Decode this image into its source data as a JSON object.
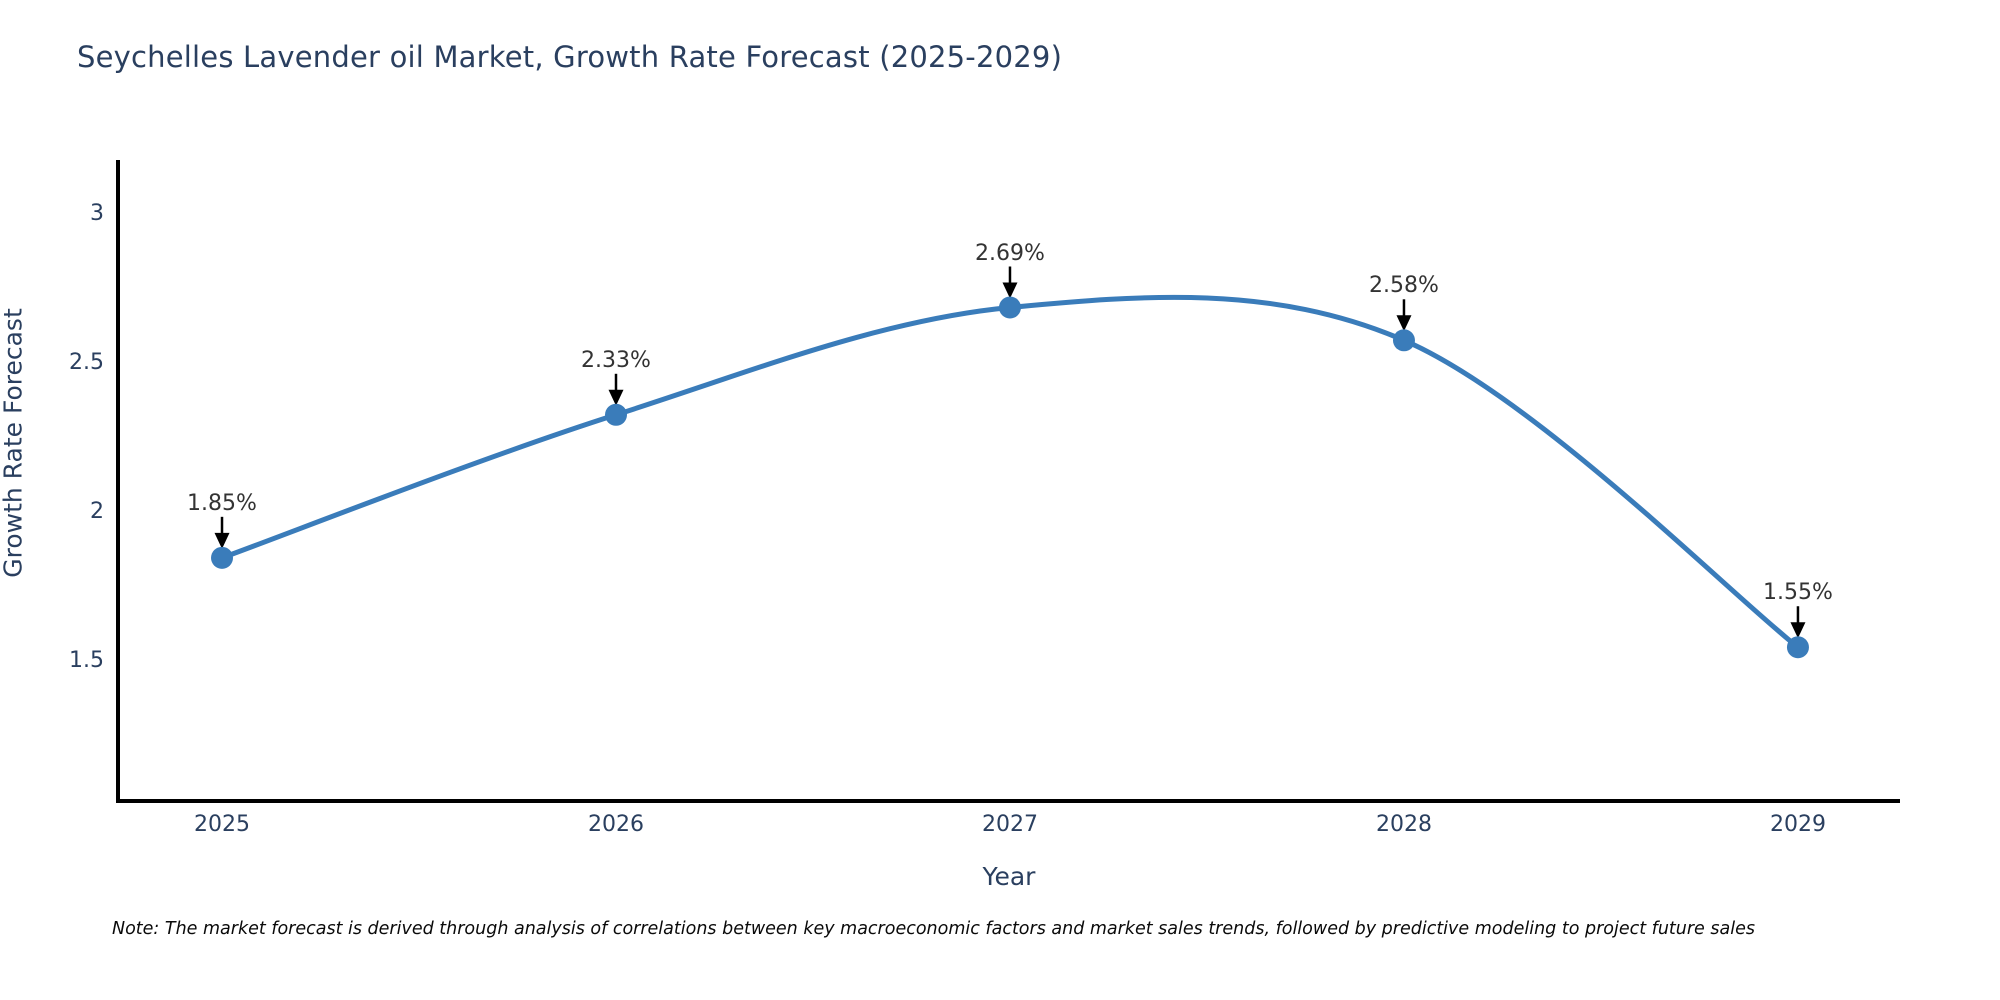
{
  "title": "Seychelles Lavender oil Market, Growth Rate Forecast (2025-2029)",
  "note": "Note: The market forecast is derived through analysis of correlations between key macroeconomic factors and market sales trends, followed by predictive modeling to project future sales",
  "colors": {
    "line": "#3a7cba",
    "marker": "#3a7cba",
    "arrow": "#000000",
    "axis_line": "#000000",
    "title_text": "#2a3f5f",
    "tick_text": "#2a3f5f",
    "annotation_text": "#333333",
    "background": "#ffffff"
  },
  "chart_data": {
    "type": "line",
    "title": "Seychelles Lavender oil Market, Growth Rate Forecast (2025-2029)",
    "xlabel": "Year",
    "ylabel": "Growth Rate Forecast",
    "x": [
      2025,
      2026,
      2027,
      2028,
      2029
    ],
    "values": [
      1.85,
      2.33,
      2.69,
      2.58,
      1.55
    ],
    "point_labels": [
      "1.85%",
      "2.33%",
      "2.69%",
      "2.58%",
      "1.55%"
    ],
    "x_tick_labels": [
      "2025",
      "2026",
      "2027",
      "2028",
      "2029"
    ],
    "y_ticks": [
      1.5,
      2,
      2.5,
      3
    ],
    "y_tick_labels": [
      "1.5",
      "2",
      "2.5",
      "3"
    ],
    "xlim": [
      2024.736,
      2029.259
    ],
    "ylim": [
      1.034,
      3.185
    ],
    "line_shape": "spline",
    "grid": false,
    "legend_position": "none",
    "annotations_style": "value label with down arrow to marker"
  }
}
